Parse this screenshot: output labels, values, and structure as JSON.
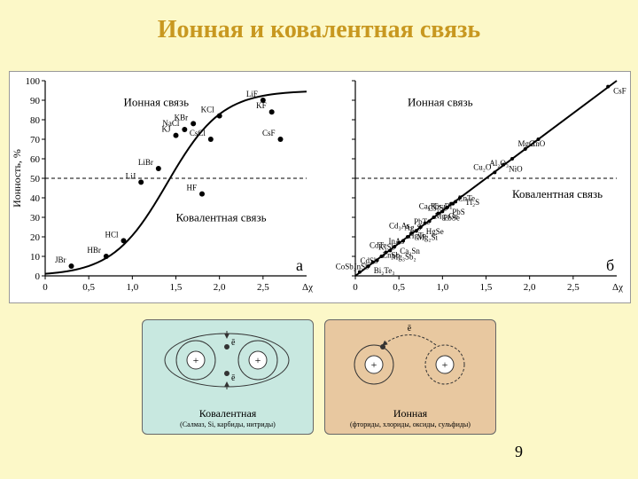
{
  "title": "Ионная и ковалентная связь",
  "page_number": "9",
  "chart_a": {
    "type": "scatter-with-curve",
    "panel_letter": "а",
    "xlabel": "Δχ",
    "ylabel": "Ионность, %",
    "xlim": [
      0,
      3.0
    ],
    "ylim": [
      0,
      100
    ],
    "xticks": [
      0,
      0.5,
      1.0,
      1.5,
      2.0,
      2.5
    ],
    "yticks": [
      0,
      10,
      20,
      30,
      40,
      50,
      60,
      70,
      80,
      90,
      100
    ],
    "dash_y": 50,
    "region_ionic": "Ионная связь",
    "region_cov": "Ковалентная связь",
    "curve_type": "sigmoid",
    "points": [
      {
        "x": 0.3,
        "y": 5,
        "l": "JBr"
      },
      {
        "x": 0.7,
        "y": 10,
        "l": "HBr"
      },
      {
        "x": 0.9,
        "y": 18,
        "l": "HCl"
      },
      {
        "x": 1.1,
        "y": 48,
        "l": "LiJ"
      },
      {
        "x": 1.3,
        "y": 55,
        "l": "LiBr"
      },
      {
        "x": 1.5,
        "y": 72,
        "l": "KJ"
      },
      {
        "x": 1.6,
        "y": 75,
        "l": "NaCl"
      },
      {
        "x": 1.7,
        "y": 78,
        "l": "KBr"
      },
      {
        "x": 1.9,
        "y": 70,
        "l": "CsCl"
      },
      {
        "x": 2.0,
        "y": 82,
        "l": "KCl"
      },
      {
        "x": 1.8,
        "y": 42,
        "l": "HF"
      },
      {
        "x": 2.5,
        "y": 90,
        "l": "LiF"
      },
      {
        "x": 2.6,
        "y": 84,
        "l": "KF"
      },
      {
        "x": 2.7,
        "y": 70,
        "l": "CsF"
      }
    ],
    "point_color": "#000000",
    "background_color": "#ffffff"
  },
  "chart_b": {
    "type": "scatter-linear",
    "panel_letter": "б",
    "xlabel": "Δχ",
    "xlim": [
      0,
      3.0
    ],
    "ylim": [
      0,
      100
    ],
    "xticks": [
      0,
      0.5,
      1.0,
      1.5,
      2.0,
      2.5
    ],
    "yticks": [
      0,
      10,
      20,
      30,
      40,
      50,
      60,
      70,
      80,
      90,
      100
    ],
    "dash_y": 50,
    "region_ionic": "Ионная связь",
    "region_cov": "Ковалентная связь",
    "line_slope": 33.3,
    "points": [
      {
        "x": 0.05,
        "y": 2,
        "l": "CoSb₂"
      },
      {
        "x": 0.15,
        "y": 5,
        "l": "Bi₂Te₃"
      },
      {
        "x": 0.2,
        "y": 7,
        "l": "InSb"
      },
      {
        "x": 0.25,
        "y": 8,
        "l": "ZnSb"
      },
      {
        "x": 0.3,
        "y": 10,
        "l": "CdSb"
      },
      {
        "x": 0.35,
        "y": 12,
        "l": "Mg₃Sb₂"
      },
      {
        "x": 0.4,
        "y": 13,
        "l": "CdTe"
      },
      {
        "x": 0.45,
        "y": 15,
        "l": "Ca₂Sn"
      },
      {
        "x": 0.5,
        "y": 17,
        "l": "K₃Sb"
      },
      {
        "x": 0.55,
        "y": 18,
        "l": "HgTe"
      },
      {
        "x": 0.6,
        "y": 20,
        "l": "InAs"
      },
      {
        "x": 0.65,
        "y": 22,
        "l": "Mg₂Si"
      },
      {
        "x": 0.7,
        "y": 23,
        "l": "Cd₃As₂"
      },
      {
        "x": 0.75,
        "y": 25,
        "l": "HgSe"
      },
      {
        "x": 0.8,
        "y": 27,
        "l": "Ag₂S"
      },
      {
        "x": 0.85,
        "y": 28,
        "l": "Mg₂Ge"
      },
      {
        "x": 0.9,
        "y": 30,
        "l": "PbTe"
      },
      {
        "x": 0.95,
        "y": 32,
        "l": "PbSe"
      },
      {
        "x": 1.0,
        "y": 33,
        "l": "Ca₂Pb"
      },
      {
        "x": 1.05,
        "y": 35,
        "l": "PbS"
      },
      {
        "x": 1.1,
        "y": 37,
        "l": "Cs₃Sb"
      },
      {
        "x": 1.12,
        "y": 37,
        "l": "ZnTe"
      },
      {
        "x": 1.15,
        "y": 38,
        "l": "Cs₃Bi"
      },
      {
        "x": 1.2,
        "y": 40,
        "l": "Tl₂S"
      },
      {
        "x": 1.6,
        "y": 53,
        "l": "Cu₂O"
      },
      {
        "x": 1.7,
        "y": 57,
        "l": "NiO"
      },
      {
        "x": 1.8,
        "y": 60,
        "l": "Al₂O₃"
      },
      {
        "x": 1.95,
        "y": 65,
        "l": "ZnO"
      },
      {
        "x": 2.1,
        "y": 70,
        "l": "MgO"
      },
      {
        "x": 2.9,
        "y": 97,
        "l": "CsF"
      }
    ],
    "point_color": "#000000",
    "background_color": "#ffffff"
  },
  "diagram_cov": {
    "title": "Ковалентная",
    "subtitle": "(Салмаз, Si, карбиды, нитриды)",
    "bg": "#c8e8e0",
    "nucleus_label": "+",
    "electron_label": "ē"
  },
  "diagram_ion": {
    "title": "Ионная",
    "subtitle": "(фториды, хлориды, оксиды, сульфиды)",
    "bg": "#e8c8a0",
    "nucleus_label": "+",
    "electron_label": "ē"
  }
}
